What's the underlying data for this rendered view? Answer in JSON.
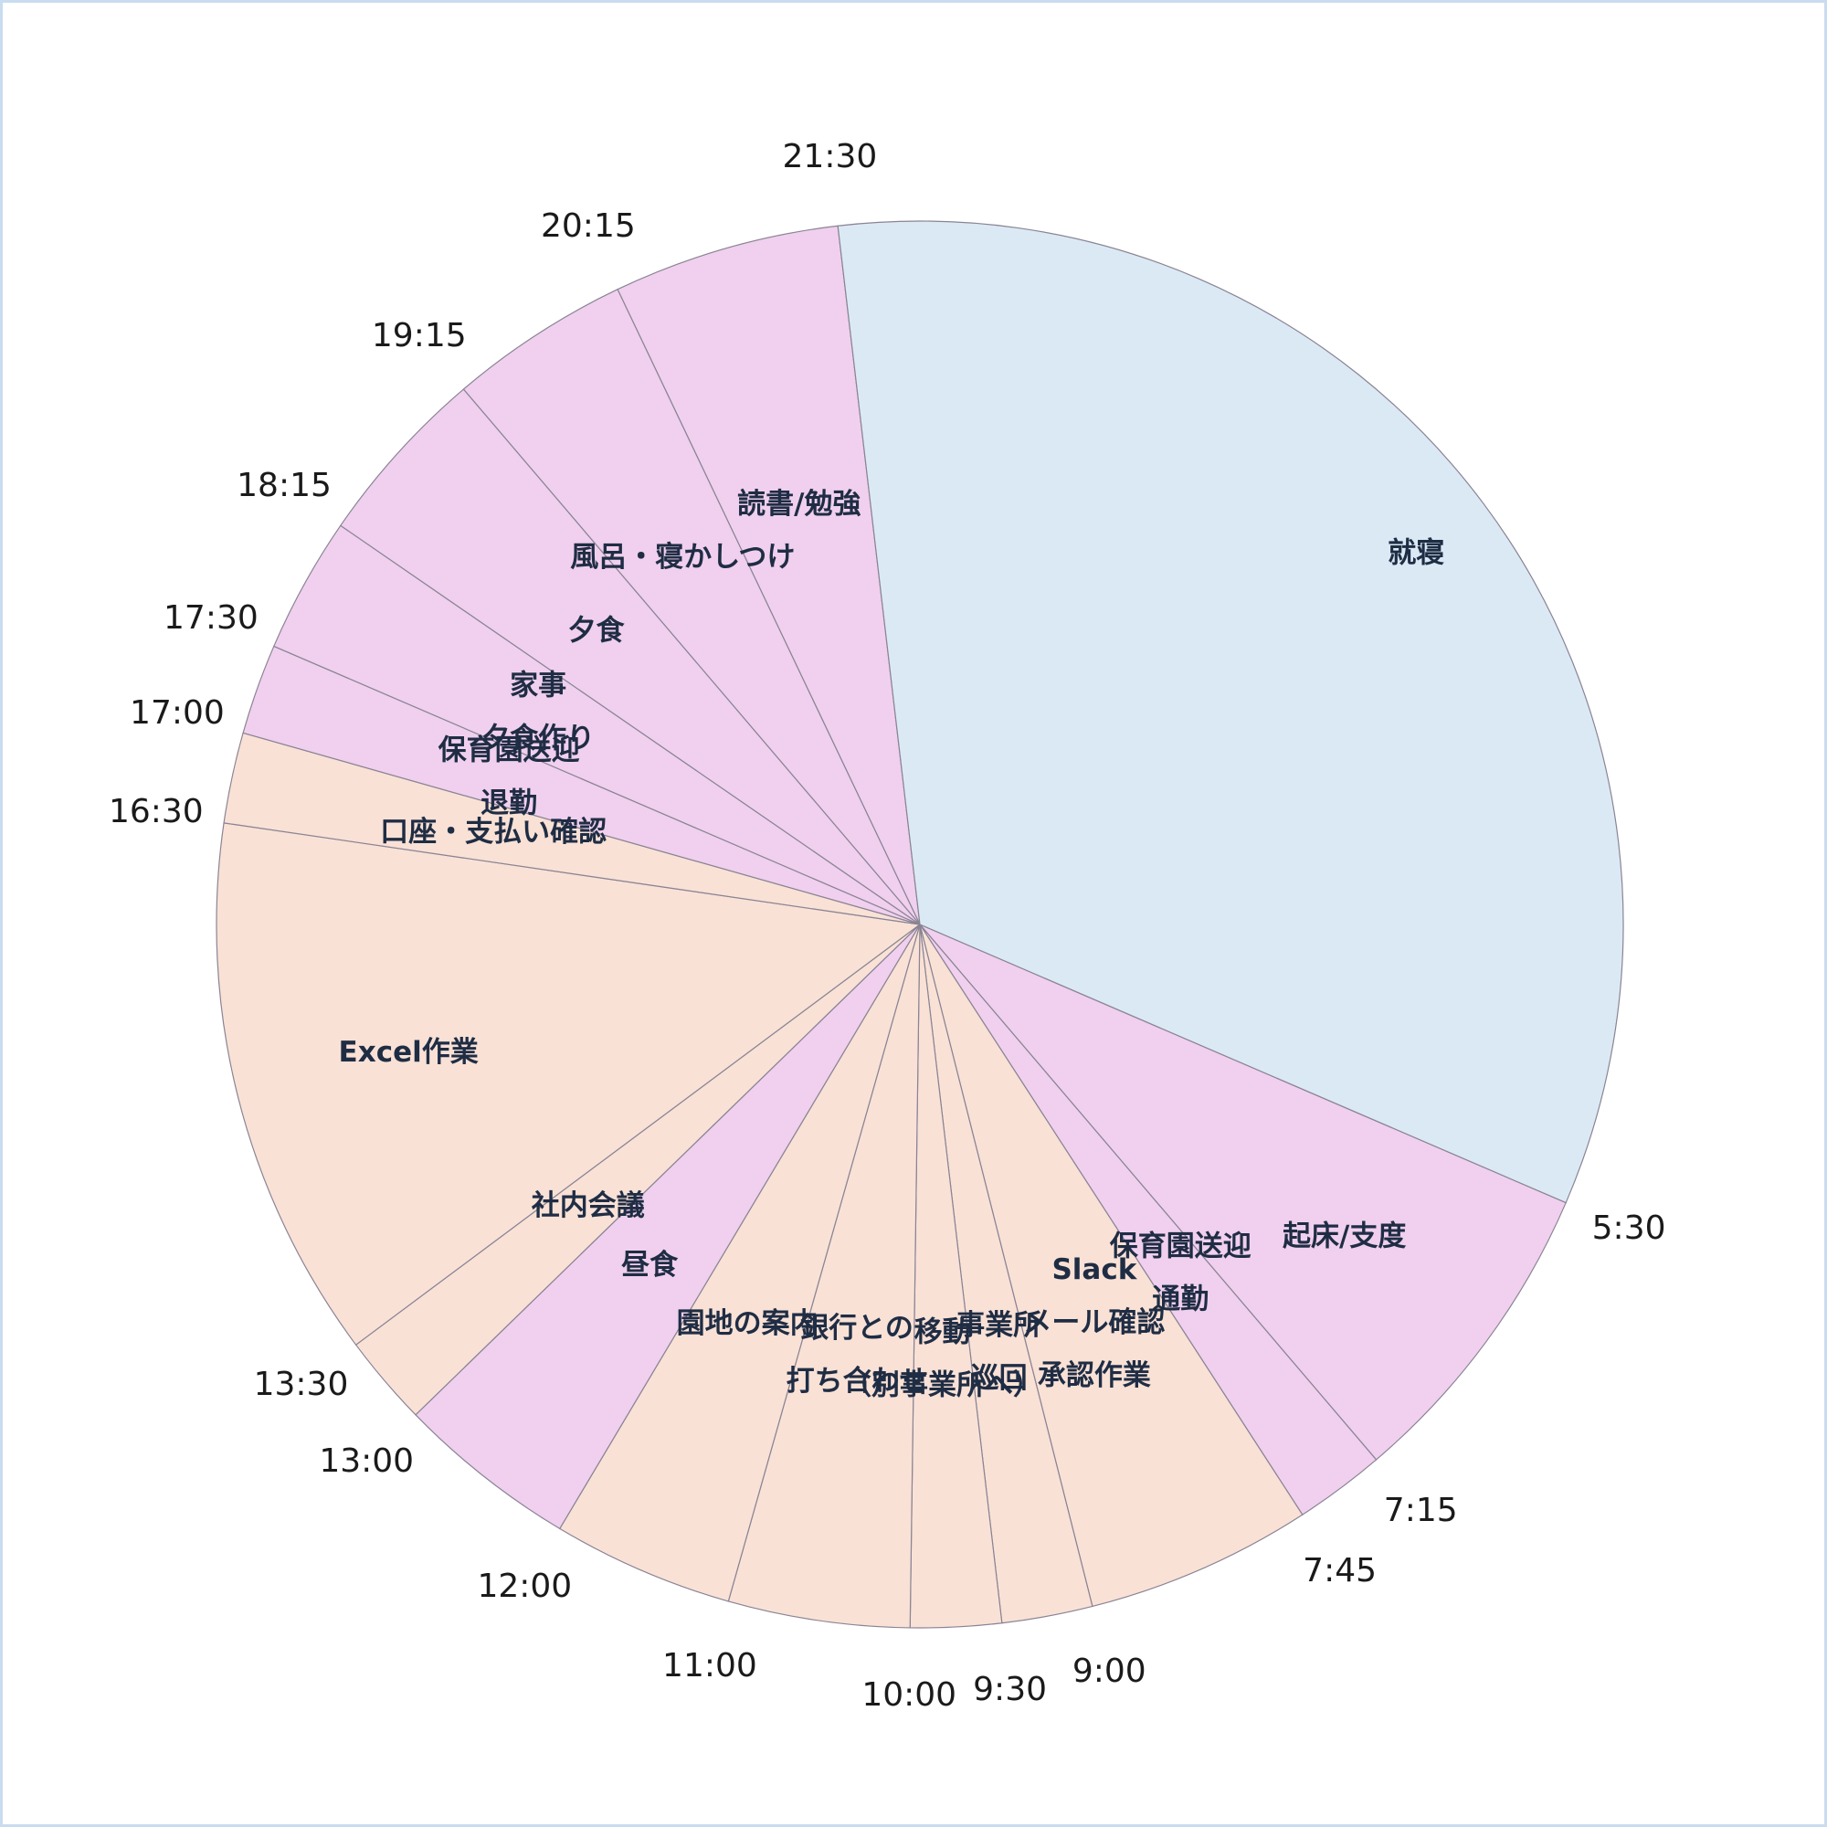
{
  "chart_data": {
    "type": "pie",
    "title": "",
    "start_time": "5:30",
    "colors": {
      "sleep": "#dbe9f5",
      "private": "#f0d0ee",
      "work": "#f9e1d6"
    },
    "segments": [
      {
        "label": [
          "起床/支度"
        ],
        "start": "5:30",
        "end": "7:15",
        "category": "private"
      },
      {
        "label": [
          "保育園送迎",
          "通勤"
        ],
        "start": "7:15",
        "end": "7:45",
        "category": "private"
      },
      {
        "label": [
          "Slack",
          "メール確認",
          "承認作業"
        ],
        "start": "7:45",
        "end": "9:00",
        "category": "work"
      },
      {
        "label": [
          "事業所",
          "巡回"
        ],
        "start": "9:00",
        "end": "9:30",
        "category": "work"
      },
      {
        "label": [
          "移動",
          "（別事業所へ）"
        ],
        "start": "9:30",
        "end": "10:00",
        "category": "work"
      },
      {
        "label": [
          "銀行との",
          "打ち合わせ"
        ],
        "start": "10:00",
        "end": "11:00",
        "category": "work"
      },
      {
        "label": [
          "園地の案内"
        ],
        "start": "11:00",
        "end": "12:00",
        "category": "work"
      },
      {
        "label": [
          "昼食"
        ],
        "start": "12:00",
        "end": "13:00",
        "category": "private"
      },
      {
        "label": [
          "社内会議"
        ],
        "start": "13:00",
        "end": "13:30",
        "category": "work"
      },
      {
        "label": [
          "Excel作業"
        ],
        "start": "13:30",
        "end": "16:30",
        "category": "work"
      },
      {
        "label": [
          "口座・支払い確認"
        ],
        "start": "16:30",
        "end": "17:00",
        "category": "work"
      },
      {
        "label": [
          "保育園送迎",
          "退勤"
        ],
        "start": "17:00",
        "end": "17:30",
        "category": "private"
      },
      {
        "label": [
          "家事",
          "夕食作り"
        ],
        "start": "17:30",
        "end": "18:15",
        "category": "private"
      },
      {
        "label": [
          "夕食"
        ],
        "start": "18:15",
        "end": "19:15",
        "category": "private"
      },
      {
        "label": [
          "風呂・寝かしつけ"
        ],
        "start": "19:15",
        "end": "20:15",
        "category": "private"
      },
      {
        "label": [
          "読書/勉強"
        ],
        "start": "20:15",
        "end": "21:30",
        "category": "private"
      },
      {
        "label": [
          "就寝"
        ],
        "start": "21:30",
        "end": "5:30",
        "category": "sleep"
      }
    ],
    "boundary_labels": [
      "5:30",
      "7:15",
      "7:45",
      "9:00",
      "9:30",
      "10:00",
      "11:00",
      "12:00",
      "13:00",
      "13:30",
      "16:30",
      "17:00",
      "17:30",
      "18:15",
      "19:15",
      "20:15",
      "21:30"
    ]
  }
}
